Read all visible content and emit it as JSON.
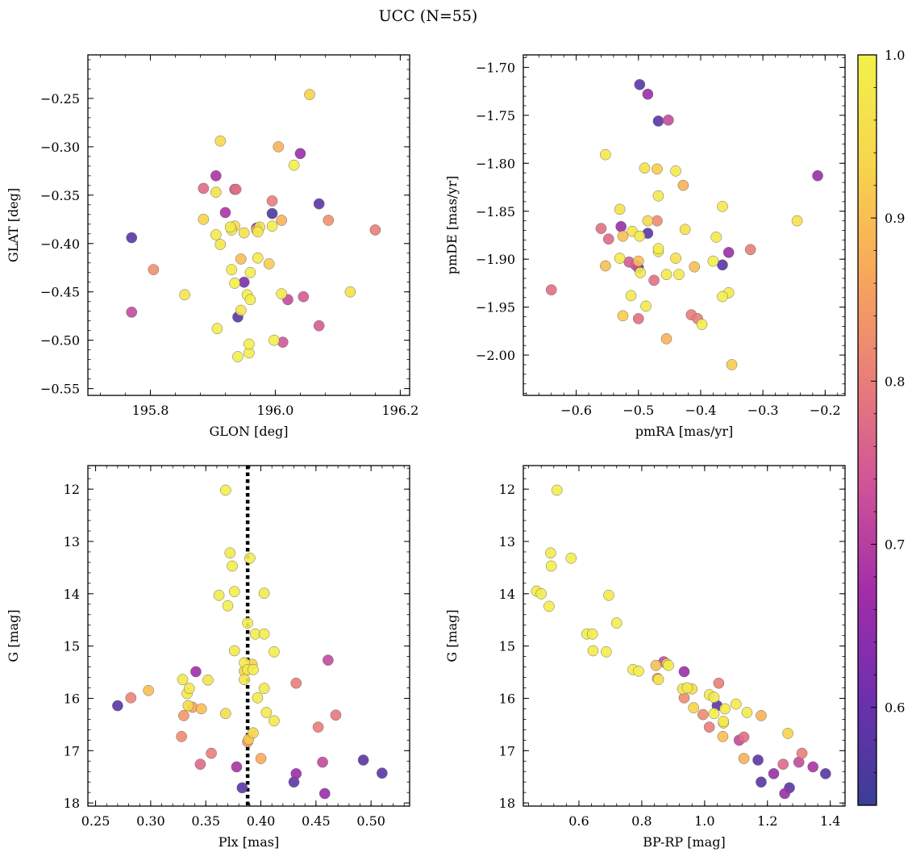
{
  "figure": {
    "title": "UCC (N=55)"
  },
  "colorbar": {
    "vmin": 0.54,
    "vmax": 1.0,
    "ticks": [
      0.6,
      0.7,
      0.8,
      0.9,
      1.0
    ],
    "tick_labels": [
      "0.6",
      "0.7",
      "0.8",
      "0.9",
      "1.0"
    ],
    "colors": [
      "#3a3e96",
      "#6e2fae",
      "#a22ea8",
      "#cf5498",
      "#ea7f78",
      "#f8a95a",
      "#f7d64c",
      "#f2f14c"
    ]
  },
  "chart_data": [
    {
      "type": "scatter",
      "panel": "top-left",
      "xlabel": "GLON [deg]",
      "ylabel": "GLAT [deg]",
      "xlim": [
        195.7,
        196.215
      ],
      "ylim": [
        -0.557,
        -0.205
      ],
      "y_inverted": false,
      "xticks": [
        195.8,
        196.0,
        196.2
      ],
      "xtick_labels": [
        "195.8",
        "196.0",
        "196.2"
      ],
      "yticks": [
        -0.25,
        -0.3,
        -0.35,
        -0.4,
        -0.45,
        -0.5,
        -0.55
      ],
      "ytick_labels": [
        "−0.25",
        "−0.30",
        "−0.35",
        "−0.40",
        "−0.45",
        "−0.50",
        "−0.55"
      ],
      "points": [
        [
          195.77,
          -0.394,
          0.58
        ],
        [
          195.77,
          -0.471,
          0.72
        ],
        [
          195.805,
          -0.427,
          0.83
        ],
        [
          195.855,
          -0.453,
          0.97
        ],
        [
          195.885,
          -0.343,
          0.77
        ],
        [
          195.885,
          -0.375,
          0.93
        ],
        [
          195.905,
          -0.33,
          0.68
        ],
        [
          195.905,
          -0.347,
          0.96
        ],
        [
          195.905,
          -0.391,
          0.98
        ],
        [
          195.907,
          -0.488,
          0.99
        ],
        [
          195.912,
          -0.294,
          0.94
        ],
        [
          195.912,
          -0.401,
          0.97
        ],
        [
          195.92,
          -0.368,
          0.68
        ],
        [
          195.93,
          -0.386,
          0.97
        ],
        [
          195.935,
          -0.344,
          0.75
        ],
        [
          195.937,
          -0.344,
          0.78
        ],
        [
          195.935,
          -0.382,
          0.95
        ],
        [
          195.928,
          -0.383,
          0.98
        ],
        [
          195.93,
          -0.427,
          0.98
        ],
        [
          195.935,
          -0.441,
          0.99
        ],
        [
          195.94,
          -0.476,
          0.58
        ],
        [
          195.94,
          -0.517,
          0.99
        ],
        [
          195.945,
          -0.416,
          0.9
        ],
        [
          195.945,
          -0.469,
          0.97
        ],
        [
          195.95,
          -0.44,
          0.62
        ],
        [
          195.95,
          -0.389,
          0.96
        ],
        [
          195.955,
          -0.453,
          0.99
        ],
        [
          195.958,
          -0.513,
          0.99
        ],
        [
          195.96,
          -0.43,
          0.99
        ],
        [
          195.96,
          -0.458,
          0.99
        ],
        [
          195.958,
          -0.504,
          0.99
        ],
        [
          195.97,
          -0.386,
          0.88
        ],
        [
          195.97,
          -0.384,
          0.68
        ],
        [
          195.972,
          -0.415,
          0.98
        ],
        [
          195.972,
          -0.388,
          0.98
        ],
        [
          195.99,
          -0.421,
          0.92
        ],
        [
          195.995,
          -0.356,
          0.8
        ],
        [
          195.995,
          -0.369,
          0.56
        ],
        [
          195.995,
          -0.382,
          0.99
        ],
        [
          195.998,
          -0.5,
          0.99
        ],
        [
          196.005,
          -0.3,
          0.88
        ],
        [
          196.01,
          -0.376,
          0.88
        ],
        [
          196.01,
          -0.452,
          0.98
        ],
        [
          196.012,
          -0.502,
          0.74
        ],
        [
          196.02,
          -0.458,
          0.72
        ],
        [
          196.03,
          -0.319,
          0.99
        ],
        [
          196.04,
          -0.307,
          0.66
        ],
        [
          196.045,
          -0.455,
          0.75
        ],
        [
          196.055,
          -0.246,
          0.93
        ],
        [
          196.07,
          -0.359,
          0.58
        ],
        [
          196.07,
          -0.485,
          0.75
        ],
        [
          196.085,
          -0.376,
          0.83
        ],
        [
          196.12,
          -0.45,
          0.96
        ],
        [
          196.16,
          -0.386,
          0.8
        ],
        [
          195.975,
          -0.383,
          0.96
        ]
      ]
    },
    {
      "type": "scatter",
      "panel": "top-right",
      "xlabel": "pmRA [mas/yr]",
      "ylabel": "pmDE [mas/yr]",
      "xlim": [
        -0.685,
        -0.168
      ],
      "ylim": [
        -2.042,
        -1.687
      ],
      "y_inverted": false,
      "xticks": [
        -0.6,
        -0.5,
        -0.4,
        -0.3,
        -0.2
      ],
      "xtick_labels": [
        "−0.6",
        "−0.5",
        "−0.4",
        "−0.3",
        "−0.2"
      ],
      "yticks": [
        -1.7,
        -1.75,
        -1.8,
        -1.85,
        -1.9,
        -1.95,
        -2.0
      ],
      "ytick_labels": [
        "−1.70",
        "−1.75",
        "−1.80",
        "−1.85",
        "−1.90",
        "−1.95",
        "−2.00"
      ],
      "points": [
        [
          -0.498,
          -1.718,
          0.58
        ],
        [
          -0.485,
          -1.728,
          0.66
        ],
        [
          -0.468,
          -1.756,
          0.58
        ],
        [
          -0.452,
          -1.755,
          0.72
        ],
        [
          -0.553,
          -1.791,
          0.98
        ],
        [
          -0.49,
          -1.805,
          0.96
        ],
        [
          -0.47,
          -1.806,
          0.92
        ],
        [
          -0.44,
          -1.808,
          0.98
        ],
        [
          -0.428,
          -1.823,
          0.88
        ],
        [
          -0.212,
          -1.813,
          0.66
        ],
        [
          -0.468,
          -1.834,
          0.98
        ],
        [
          -0.53,
          -1.848,
          0.96
        ],
        [
          -0.365,
          -1.845,
          0.98
        ],
        [
          -0.245,
          -1.86,
          0.96
        ],
        [
          -0.485,
          -1.86,
          0.94
        ],
        [
          -0.47,
          -1.86,
          0.82
        ],
        [
          -0.56,
          -1.868,
          0.78
        ],
        [
          -0.528,
          -1.866,
          0.66
        ],
        [
          -0.548,
          -1.879,
          0.77
        ],
        [
          -0.51,
          -1.871,
          0.97
        ],
        [
          -0.525,
          -1.876,
          0.9
        ],
        [
          -0.498,
          -1.876,
          0.98
        ],
        [
          -0.485,
          -1.873,
          0.58
        ],
        [
          -0.468,
          -1.889,
          0.99
        ],
        [
          -0.468,
          -1.892,
          0.98
        ],
        [
          -0.425,
          -1.869,
          0.96
        ],
        [
          -0.375,
          -1.877,
          0.98
        ],
        [
          -0.355,
          -1.893,
          0.66
        ],
        [
          -0.553,
          -1.907,
          0.9
        ],
        [
          -0.53,
          -1.899,
          0.98
        ],
        [
          -0.515,
          -1.903,
          0.75
        ],
        [
          -0.505,
          -1.906,
          0.73
        ],
        [
          -0.5,
          -1.909,
          0.58
        ],
        [
          -0.5,
          -1.902,
          0.9
        ],
        [
          -0.497,
          -1.914,
          0.98
        ],
        [
          -0.44,
          -1.899,
          0.96
        ],
        [
          -0.455,
          -1.916,
          0.98
        ],
        [
          -0.435,
          -1.916,
          0.98
        ],
        [
          -0.41,
          -1.908,
          0.9
        ],
        [
          -0.38,
          -1.902,
          0.99
        ],
        [
          -0.365,
          -1.906,
          0.58
        ],
        [
          -0.32,
          -1.89,
          0.8
        ],
        [
          -0.64,
          -1.932,
          0.78
        ],
        [
          -0.512,
          -1.938,
          0.98
        ],
        [
          -0.525,
          -1.959,
          0.92
        ],
        [
          -0.5,
          -1.962,
          0.78
        ],
        [
          -0.488,
          -1.949,
          0.98
        ],
        [
          -0.475,
          -1.922,
          0.78
        ],
        [
          -0.415,
          -1.958,
          0.8
        ],
        [
          -0.405,
          -1.962,
          0.8
        ],
        [
          -0.398,
          -1.968,
          0.99
        ],
        [
          -0.365,
          -1.939,
          0.99
        ],
        [
          -0.355,
          -1.935,
          0.98
        ],
        [
          -0.455,
          -1.983,
          0.88
        ],
        [
          -0.35,
          -2.01,
          0.92
        ]
      ]
    },
    {
      "type": "scatter",
      "panel": "bottom-left",
      "xlabel": "Plx [mas]",
      "ylabel": "G [mag]",
      "xlim": [
        0.243,
        0.535
      ],
      "ylim": [
        18.06,
        11.55
      ],
      "y_inverted": true,
      "vline": {
        "x": 0.388,
        "style": "dotted"
      },
      "xticks": [
        0.25,
        0.3,
        0.35,
        0.4,
        0.45,
        0.5
      ],
      "xtick_labels": [
        "0.25",
        "0.30",
        "0.35",
        "0.40",
        "0.45",
        "0.50"
      ],
      "yticks": [
        12,
        13,
        14,
        15,
        16,
        17,
        18
      ],
      "ytick_labels": [
        "12",
        "13",
        "14",
        "15",
        "16",
        "17",
        "18"
      ],
      "points": [
        [
          0.368,
          12.02,
          0.99
        ],
        [
          0.372,
          13.22,
          0.98
        ],
        [
          0.39,
          13.32,
          0.99
        ],
        [
          0.374,
          13.47,
          0.99
        ],
        [
          0.362,
          14.03,
          0.98
        ],
        [
          0.376,
          13.96,
          0.99
        ],
        [
          0.403,
          13.99,
          0.98
        ],
        [
          0.37,
          14.23,
          0.99
        ],
        [
          0.388,
          14.56,
          0.99
        ],
        [
          0.395,
          14.77,
          0.99
        ],
        [
          0.403,
          14.77,
          0.99
        ],
        [
          0.376,
          15.09,
          0.98
        ],
        [
          0.412,
          15.11,
          0.99
        ],
        [
          0.385,
          15.32,
          0.98
        ],
        [
          0.392,
          15.35,
          0.93
        ],
        [
          0.388,
          15.45,
          0.98
        ],
        [
          0.393,
          15.45,
          0.99
        ],
        [
          0.385,
          15.64,
          0.97
        ],
        [
          0.329,
          15.64,
          0.98
        ],
        [
          0.341,
          15.49,
          0.67
        ],
        [
          0.352,
          15.65,
          0.96
        ],
        [
          0.333,
          15.91,
          0.98
        ],
        [
          0.335,
          15.81,
          0.98
        ],
        [
          0.298,
          15.85,
          0.9
        ],
        [
          0.282,
          15.99,
          0.81
        ],
        [
          0.397,
          15.99,
          0.98
        ],
        [
          0.403,
          15.81,
          0.98
        ],
        [
          0.368,
          16.29,
          0.95
        ],
        [
          0.405,
          16.27,
          0.98
        ],
        [
          0.412,
          16.43,
          0.98
        ],
        [
          0.338,
          16.17,
          0.86
        ],
        [
          0.346,
          16.2,
          0.9
        ],
        [
          0.334,
          16.14,
          0.95
        ],
        [
          0.33,
          16.33,
          0.84
        ],
        [
          0.27,
          16.14,
          0.58
        ],
        [
          0.432,
          15.71,
          0.8
        ],
        [
          0.461,
          15.27,
          0.72
        ],
        [
          0.452,
          16.55,
          0.8
        ],
        [
          0.468,
          16.32,
          0.79
        ],
        [
          0.328,
          16.73,
          0.82
        ],
        [
          0.393,
          16.66,
          0.93
        ],
        [
          0.389,
          16.78,
          0.92
        ],
        [
          0.388,
          16.83,
          0.84
        ],
        [
          0.355,
          17.05,
          0.8
        ],
        [
          0.345,
          17.26,
          0.77
        ],
        [
          0.378,
          17.31,
          0.68
        ],
        [
          0.4,
          17.15,
          0.87
        ],
        [
          0.432,
          17.44,
          0.66
        ],
        [
          0.456,
          17.22,
          0.72
        ],
        [
          0.493,
          17.18,
          0.58
        ],
        [
          0.51,
          17.43,
          0.58
        ],
        [
          0.43,
          17.6,
          0.58
        ],
        [
          0.383,
          17.71,
          0.58
        ],
        [
          0.458,
          17.82,
          0.66
        ],
        [
          0.385,
          15.48,
          0.93
        ]
      ]
    },
    {
      "type": "scatter",
      "panel": "bottom-right",
      "xlabel": "BP-RP [mag]",
      "ylabel": "G [mag]",
      "xlim": [
        0.423,
        1.447
      ],
      "ylim": [
        18.06,
        11.55
      ],
      "y_inverted": true,
      "xticks": [
        0.6,
        0.8,
        1.0,
        1.2,
        1.4
      ],
      "xtick_labels": [
        "0.6",
        "0.8",
        "1.0",
        "1.2",
        "1.4"
      ],
      "yticks": [
        12,
        13,
        14,
        15,
        16,
        17,
        18
      ],
      "ytick_labels": [
        "12",
        "13",
        "14",
        "15",
        "16",
        "17",
        "18"
      ],
      "points": [
        [
          0.53,
          12.02,
          0.99
        ],
        [
          0.51,
          13.22,
          0.98
        ],
        [
          0.575,
          13.32,
          0.99
        ],
        [
          0.512,
          13.47,
          0.99
        ],
        [
          0.465,
          13.95,
          0.98
        ],
        [
          0.48,
          14.0,
          0.99
        ],
        [
          0.505,
          14.24,
          0.99
        ],
        [
          0.695,
          14.03,
          0.98
        ],
        [
          0.72,
          14.56,
          0.99
        ],
        [
          0.625,
          14.77,
          0.99
        ],
        [
          0.643,
          14.77,
          0.99
        ],
        [
          0.645,
          15.09,
          0.98
        ],
        [
          0.687,
          15.11,
          0.99
        ],
        [
          0.772,
          15.45,
          0.99
        ],
        [
          0.79,
          15.48,
          0.99
        ],
        [
          0.87,
          15.3,
          0.72
        ],
        [
          0.885,
          15.37,
          0.99
        ],
        [
          0.845,
          15.37,
          0.9
        ],
        [
          0.85,
          15.62,
          0.84
        ],
        [
          0.853,
          15.64,
          0.98
        ],
        [
          0.935,
          15.49,
          0.66
        ],
        [
          0.93,
          15.82,
          0.97
        ],
        [
          0.945,
          15.8,
          0.98
        ],
        [
          0.935,
          15.99,
          0.82
        ],
        [
          0.965,
          16.18,
          0.93
        ],
        [
          0.995,
          16.31,
          0.82
        ],
        [
          1.015,
          16.55,
          0.8
        ],
        [
          1.015,
          15.93,
          0.98
        ],
        [
          1.03,
          15.98,
          0.98
        ],
        [
          1.04,
          16.14,
          0.58
        ],
        [
          1.045,
          15.71,
          0.8
        ],
        [
          1.03,
          16.29,
          0.99
        ],
        [
          1.06,
          16.44,
          0.98
        ],
        [
          1.065,
          16.2,
          0.98
        ],
        [
          1.058,
          16.73,
          0.9
        ],
        [
          1.1,
          16.11,
          0.98
        ],
        [
          1.11,
          16.8,
          0.72
        ],
        [
          1.125,
          16.74,
          0.78
        ],
        [
          1.125,
          17.15,
          0.88
        ],
        [
          1.135,
          16.27,
          0.98
        ],
        [
          1.17,
          17.18,
          0.58
        ],
        [
          1.18,
          16.33,
          0.88
        ],
        [
          1.18,
          17.6,
          0.58
        ],
        [
          1.22,
          17.44,
          0.66
        ],
        [
          1.25,
          17.26,
          0.77
        ],
        [
          1.255,
          17.82,
          0.66
        ],
        [
          1.27,
          17.71,
          0.58
        ],
        [
          1.265,
          16.67,
          0.93
        ],
        [
          1.3,
          17.22,
          0.72
        ],
        [
          1.31,
          17.05,
          0.8
        ],
        [
          1.345,
          17.31,
          0.68
        ],
        [
          1.385,
          17.44,
          0.58
        ],
        [
          0.88,
          15.34,
          0.93
        ],
        [
          0.96,
          15.82,
          0.95
        ],
        [
          1.06,
          16.47,
          0.96
        ]
      ]
    }
  ]
}
